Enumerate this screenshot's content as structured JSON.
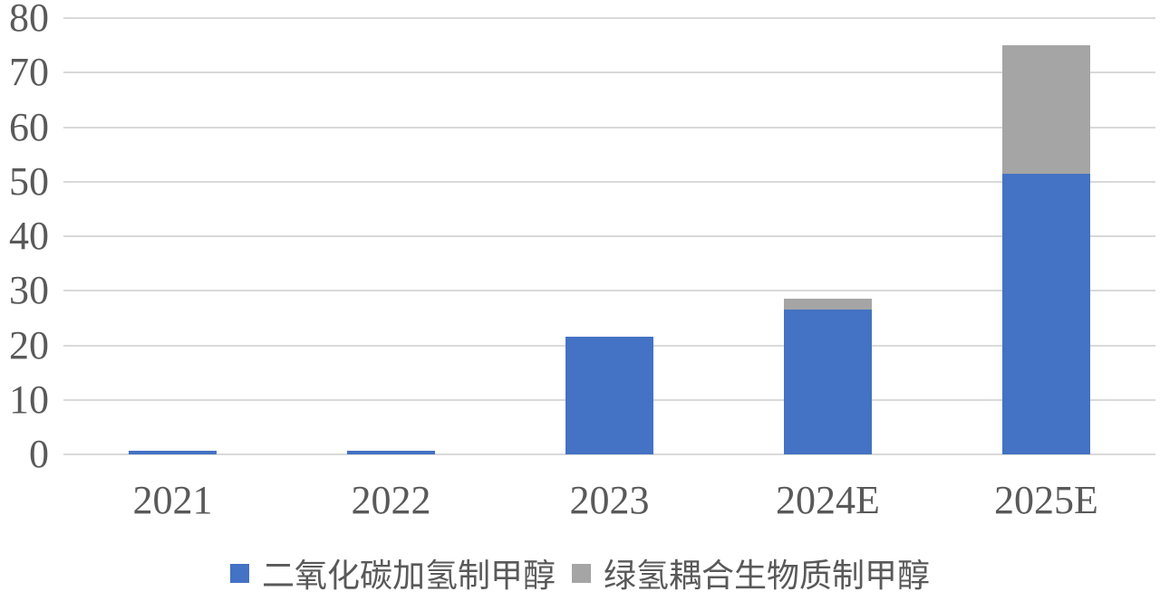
{
  "chart_data": {
    "type": "bar",
    "stacked": true,
    "title": "",
    "xlabel": "",
    "ylabel": "",
    "categories": [
      "2021",
      "2022",
      "2023",
      "2024E",
      "2025E"
    ],
    "series": [
      {
        "name": "二氧化碳加氢制甲醇",
        "color": "#4472C4",
        "values": [
          0.6,
          0.6,
          21.5,
          26.5,
          51.5
        ]
      },
      {
        "name": "绿氢耦合生物质制甲醇",
        "color": "#A5A5A5",
        "values": [
          0,
          0,
          0,
          2,
          23.5
        ]
      }
    ],
    "ylim": [
      0,
      80
    ],
    "yticks": [
      0,
      10,
      20,
      30,
      40,
      50,
      60,
      70,
      80
    ],
    "grid": true,
    "legend_position": "bottom"
  },
  "colors": {
    "background": "#FFFFFF",
    "gridline": "#D9D9D9",
    "tick_label": "#595959",
    "legend_text": "#595959",
    "series_blue": "#4472C4",
    "series_gray": "#A5A5A5"
  }
}
